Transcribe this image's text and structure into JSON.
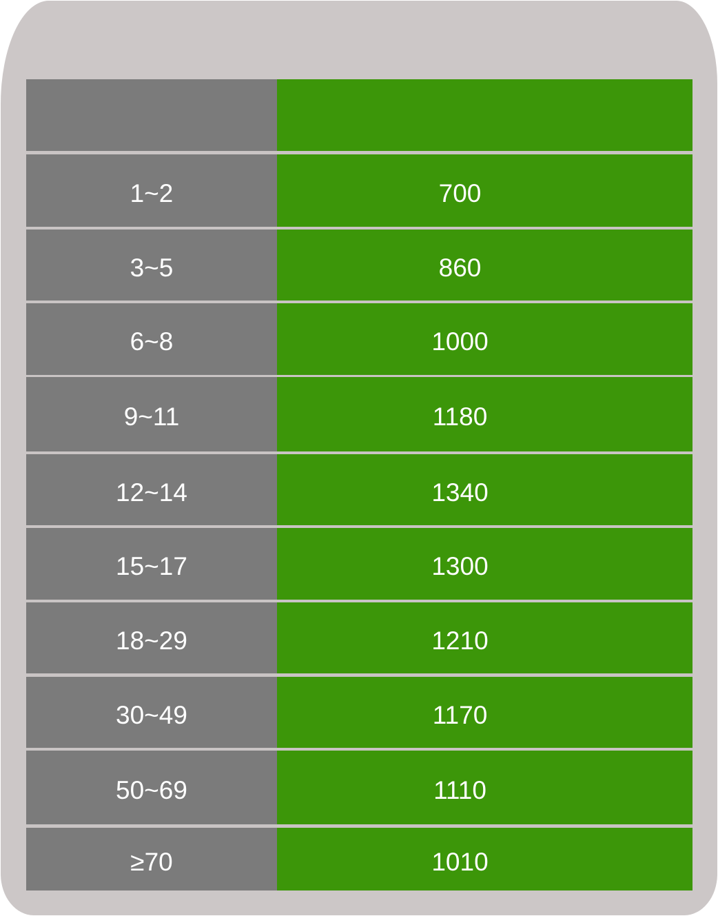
{
  "header": {
    "left": "",
    "right": ""
  },
  "rows": [
    {
      "age": "1~2",
      "value": "700"
    },
    {
      "age": "3~5",
      "value": "860"
    },
    {
      "age": "6~8",
      "value": "1000"
    },
    {
      "age": "9~11",
      "value": "1180"
    },
    {
      "age": "12~14",
      "value": "1340"
    },
    {
      "age": "15~17",
      "value": "1300"
    },
    {
      "age": "18~29",
      "value": "1210"
    },
    {
      "age": "30~49",
      "value": "1170"
    },
    {
      "age": "50~69",
      "value": "1110"
    },
    {
      "age": "≥70",
      "value": "1010"
    }
  ],
  "colors": {
    "background": "#ccc7c7",
    "age_column": "#7b7b7b",
    "value_column": "#3c9609",
    "text": "#ffffff"
  }
}
